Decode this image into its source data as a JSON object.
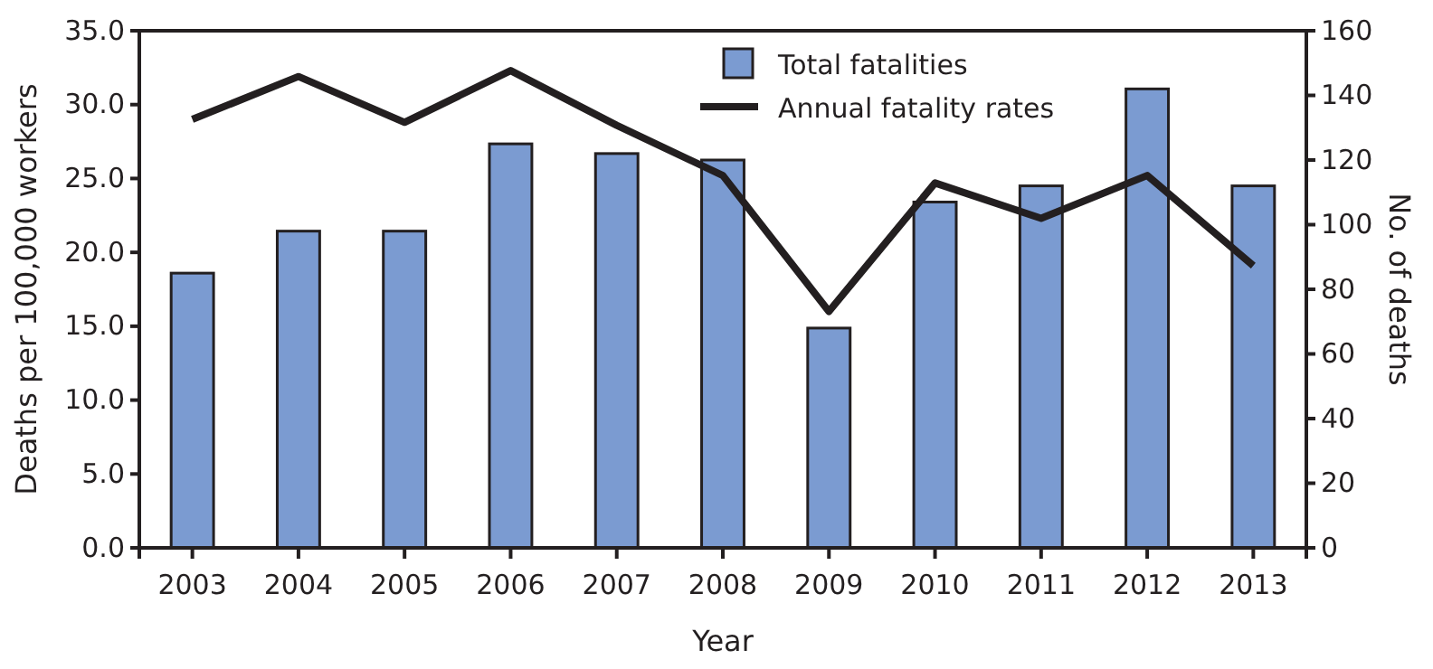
{
  "chart_data": {
    "type": "bar",
    "xlabel": "Year",
    "ylabel": "Deaths per 100,000 workers",
    "y2label": "No. of deaths",
    "categories": [
      "2003",
      "2004",
      "2005",
      "2006",
      "2007",
      "2008",
      "2009",
      "2010",
      "2011",
      "2012",
      "2013"
    ],
    "series": [
      {
        "name": "Total fatalities",
        "axis": "y2",
        "color": "#7b9bd1",
        "values": [
          85,
          98,
          98,
          125,
          122,
          120,
          68,
          107,
          112,
          142,
          112
        ]
      },
      {
        "name": "Annual fatality rates",
        "type": "line",
        "color": "#231f20",
        "values": [
          29.0,
          31.9,
          28.8,
          32.3,
          28.6,
          25.2,
          16.0,
          24.7,
          22.3,
          25.2,
          19.1
        ]
      }
    ],
    "ylim": [
      0,
      35
    ],
    "yticks": [
      {
        "value": 0,
        "label": "0.0"
      },
      {
        "value": 5,
        "label": "5.0"
      },
      {
        "value": 10,
        "label": "10.0"
      },
      {
        "value": 15,
        "label": "15.0"
      },
      {
        "value": 20,
        "label": "20.0"
      },
      {
        "value": 25,
        "label": "25.0"
      },
      {
        "value": 30,
        "label": "30.0"
      },
      {
        "value": 35,
        "label": "35.0"
      }
    ],
    "y2lim": [
      0,
      160
    ],
    "y2ticks": [
      0,
      20,
      40,
      60,
      80,
      100,
      120,
      140,
      160
    ],
    "legend": "top right",
    "grid": false,
    "marker": "none",
    "line_style": "solid"
  }
}
